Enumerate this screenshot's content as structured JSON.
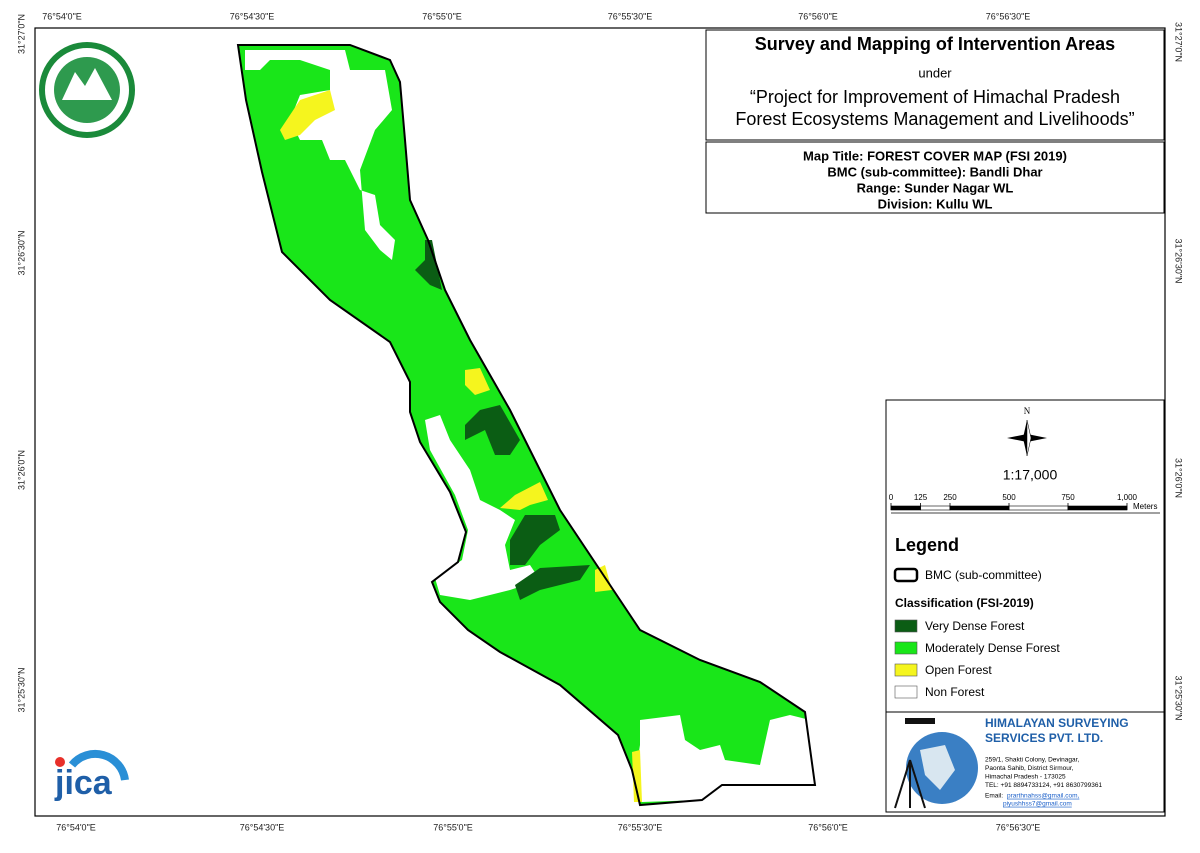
{
  "coordinates": {
    "top": [
      "76°54'0\"E",
      "76°54'30\"E",
      "76°55'0\"E",
      "76°55'30\"E",
      "76°56'0\"E",
      "76°56'30\"E"
    ],
    "bottom": [
      "76°54'0\"E",
      "76°54'30\"E",
      "76°55'0\"E",
      "76°55'30\"E",
      "76°56'0\"E",
      "76°56'30\"E"
    ],
    "left": [
      "31°27'0\"N",
      "31°26'30\"N",
      "31°26'0\"N",
      "31°25'30\"N"
    ],
    "right": [
      "31°27'0\"N",
      "31°26'30\"N",
      "31°26'0\"N",
      "31°25'30\"N"
    ]
  },
  "header": {
    "title": "Survey and Mapping of Intervention Areas",
    "under": "under",
    "project_line1": "“Project for Improvement of Himachal Pradesh",
    "project_line2": "Forest Ecosystems Management and Livelihoods”"
  },
  "map_info": {
    "map_title": "Map Title: FOREST COVER MAP (FSI 2019)",
    "bmc": "BMC (sub-committee): Bandli Dhar",
    "range": "Range: Sunder Nagar WL",
    "division": "Division: Kullu WL"
  },
  "north_arrow": "N",
  "scale": "1:17,000",
  "scale_bar": {
    "ticks": [
      0,
      125,
      250,
      500,
      750,
      {
        "value": 1000,
        "label": "1,000"
      }
    ],
    "unit": "Meters"
  },
  "legend": {
    "title": "Legend",
    "boundary": "BMC (sub-committee)",
    "classification_title": "Classification (FSI-2019)",
    "classes": [
      {
        "label": "Very Dense Forest",
        "color": "#0b5d14"
      },
      {
        "label": "Moderately Dense Forest",
        "color": "#19e619"
      },
      {
        "label": "Open Forest",
        "color": "#f5f51e"
      },
      {
        "label": "Non Forest",
        "color": "#ffffff"
      }
    ]
  },
  "company": {
    "name_line1": "HIMALAYAN SURVEYING",
    "name_line2": "SERVICES PVT. LTD.",
    "address": [
      "259/1, Shakti Colony, Devinagar,",
      "Paonta Sahib, District Sirmour,",
      "Himachal Pradesh - 173025",
      "TEL: +91 8894733124, +91 8630799361"
    ],
    "email_label": "Email:",
    "emails": [
      "prarthnahss@gmail.com,",
      "piyushhss7@gmail.com"
    ]
  },
  "logo_text": "jica"
}
